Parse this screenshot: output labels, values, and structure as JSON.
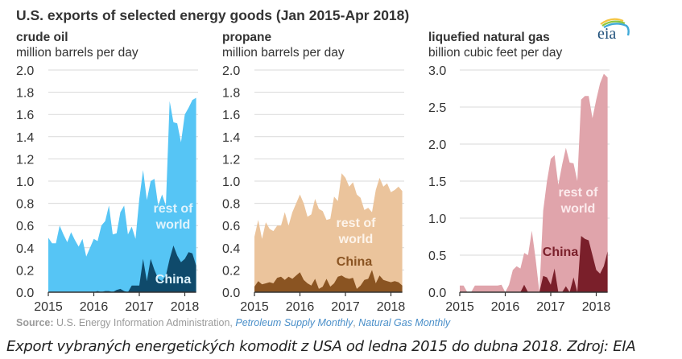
{
  "title": "U.S. exports of selected energy goods (Jan 2015-Apr 2018)",
  "logo_text": "eia",
  "source": {
    "label": "Source:",
    "agency": "U.S. Energy Information Administration,",
    "pub1": "Petroleum Supply Monthly",
    "sep": ",",
    "pub2": "Natural Gas Monthly"
  },
  "caption": "Export vybraných energetických komodit z USA od ledna 2015 do dubna 2018. Zdroj: EIA",
  "chart_data": [
    {
      "type": "area",
      "stacked": true,
      "title": "crude oil",
      "ylabel": "million barrels per day",
      "ylim": [
        0,
        2.0
      ],
      "yticks": [
        "0.0",
        "0.2",
        "0.4",
        "0.6",
        "0.8",
        "1.0",
        "1.2",
        "1.4",
        "1.6",
        "1.8",
        "2.0"
      ],
      "xticks": [
        "2015",
        "2016",
        "2017",
        "2018"
      ],
      "x_start": "2015-01",
      "x_end": "2018-04",
      "grid": true,
      "colors": {
        "rest": "#56c5f5",
        "china": "#0f4a6b",
        "rest_label": "#dff3fc",
        "china_label": "#dff3fc"
      },
      "series": [
        {
          "name": "China",
          "label": "China",
          "values": [
            0,
            0,
            0,
            0,
            0,
            0,
            0,
            0,
            0,
            0,
            0,
            0,
            0,
            0.01,
            0,
            0.01,
            0.01,
            0,
            0.02,
            0.03,
            0.01,
            0,
            0.06,
            0.06,
            0.06,
            0.3,
            0.1,
            0.3,
            0.2,
            0.12,
            0.1,
            0.15,
            0.3,
            0.42,
            0.33,
            0.27,
            0.3,
            0.36,
            0.35,
            0.24
          ]
        },
        {
          "name": "rest of world",
          "label": "rest of world",
          "label_lines": [
            "rest of",
            "world"
          ],
          "totals": [
            0.49,
            0.44,
            0.44,
            0.6,
            0.52,
            0.45,
            0.54,
            0.47,
            0.41,
            0.48,
            0.32,
            0.4,
            0.48,
            0.46,
            0.6,
            0.64,
            0.78,
            0.52,
            0.53,
            0.72,
            0.78,
            0.52,
            0.59,
            0.48,
            0.84,
            1.1,
            0.83,
            1.0,
            1.02,
            0.78,
            0.88,
            0.78,
            1.72,
            1.53,
            1.52,
            1.35,
            1.6,
            1.66,
            1.73,
            1.75
          ]
        }
      ]
    },
    {
      "type": "area",
      "stacked": true,
      "title": "propane",
      "ylabel": "million barrels per day",
      "ylim": [
        0,
        2.0
      ],
      "yticks": [
        "0.0",
        "0.2",
        "0.4",
        "0.6",
        "0.8",
        "1.0",
        "1.2",
        "1.4",
        "1.6",
        "1.8",
        "2.0"
      ],
      "xticks": [
        "2015",
        "2016",
        "2017",
        "2018"
      ],
      "x_start": "2015-01",
      "x_end": "2018-04",
      "grid": true,
      "colors": {
        "rest": "#ebc49c",
        "china": "#8a5422",
        "rest_label": "#fdf4ea",
        "china_label": "#8a5422"
      },
      "series": [
        {
          "name": "China",
          "label": "China",
          "values": [
            0.05,
            0.1,
            0.07,
            0.08,
            0.09,
            0.08,
            0.13,
            0.14,
            0.11,
            0.14,
            0.12,
            0.15,
            0.18,
            0.11,
            0.08,
            0.06,
            0.12,
            0.03,
            0.05,
            0.12,
            0.05,
            0.08,
            0.14,
            0.15,
            0.13,
            0.12,
            0.13,
            0.03,
            0.06,
            0.11,
            0.12,
            0.2,
            0.08,
            0.15,
            0.11,
            0.1,
            0.09,
            0.1,
            0.09,
            0.06
          ]
        },
        {
          "name": "rest of world",
          "label": "rest of world",
          "label_lines": [
            "rest of",
            "world"
          ],
          "totals": [
            0.5,
            0.65,
            0.48,
            0.63,
            0.57,
            0.55,
            0.6,
            0.6,
            0.72,
            0.6,
            0.72,
            0.8,
            0.88,
            0.8,
            0.68,
            0.7,
            0.84,
            0.75,
            0.73,
            0.65,
            0.66,
            0.86,
            0.82,
            1.07,
            1.03,
            0.95,
            0.99,
            0.88,
            0.85,
            0.74,
            0.76,
            0.72,
            0.92,
            1.03,
            0.95,
            0.98,
            0.9,
            0.92,
            0.95,
            0.91
          ]
        }
      ]
    },
    {
      "type": "area",
      "stacked": true,
      "title": "liquefied natural gas",
      "ylabel": "billion cubic feet per day",
      "ylim": [
        0,
        3.0
      ],
      "yticks": [
        "0.0",
        "0.5",
        "1.0",
        "1.5",
        "2.0",
        "2.5",
        "3.0"
      ],
      "xticks": [
        "2015",
        "2016",
        "2017",
        "2018"
      ],
      "x_start": "2015-01",
      "x_end": "2018-04",
      "grid": true,
      "colors": {
        "rest": "#e0a4ab",
        "china": "#7a1f2a",
        "rest_label": "#fcebed",
        "china_label": "#7a1f2a"
      },
      "series": [
        {
          "name": "China",
          "label": "China",
          "values": [
            0,
            0,
            0,
            0,
            0,
            0,
            0,
            0,
            0,
            0,
            0,
            0,
            0,
            0,
            0,
            0,
            0,
            0.1,
            0,
            0,
            0,
            0,
            0.22,
            0.2,
            0.1,
            0.32,
            0,
            0,
            0.08,
            0,
            0.2,
            0,
            0.76,
            0.72,
            0.7,
            0.5,
            0.3,
            0.25,
            0.35,
            0.55
          ]
        },
        {
          "name": "rest of world",
          "label": "rest of world",
          "label_lines": [
            "rest of",
            "world"
          ],
          "totals": [
            0.09,
            0.09,
            0,
            0,
            0.09,
            0.09,
            0.09,
            0.09,
            0.09,
            0.09,
            0.09,
            0.1,
            0,
            0.1,
            0.3,
            0.35,
            0.32,
            0.53,
            0.5,
            0.83,
            0.45,
            0,
            1.1,
            1.5,
            1.8,
            1.85,
            1.45,
            1.72,
            1.95,
            1.75,
            1.74,
            1.5,
            2.6,
            2.65,
            2.65,
            2.35,
            2.6,
            2.82,
            2.95,
            2.9
          ]
        }
      ]
    }
  ]
}
